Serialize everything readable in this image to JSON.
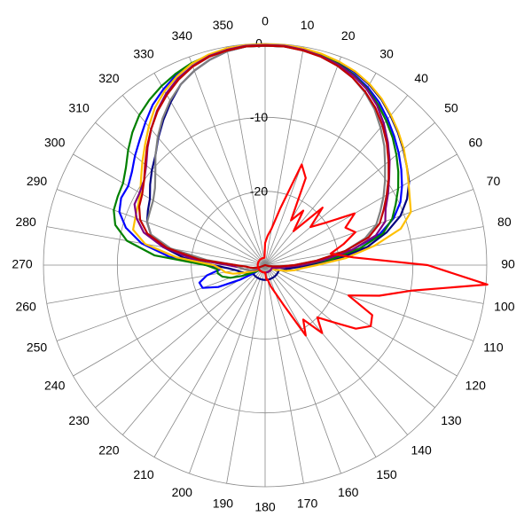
{
  "chart_data": {
    "type": "polar",
    "theta": [
      0,
      5,
      10,
      15,
      20,
      25,
      30,
      35,
      40,
      45,
      50,
      55,
      60,
      65,
      70,
      75,
      80,
      85,
      90,
      95,
      100,
      105,
      110,
      115,
      120,
      125,
      130,
      135,
      140,
      145,
      150,
      155,
      160,
      165,
      170,
      175,
      180,
      185,
      190,
      195,
      200,
      205,
      210,
      215,
      220,
      225,
      230,
      235,
      240,
      245,
      250,
      255,
      260,
      265,
      270,
      275,
      280,
      285,
      290,
      295,
      300,
      305,
      310,
      315,
      320,
      325,
      330,
      335,
      340,
      345,
      350,
      355
    ],
    "rlim": [
      -30,
      0
    ],
    "rticks": [
      -20,
      -10,
      0
    ],
    "thetaticks": [
      0,
      10,
      20,
      30,
      40,
      50,
      60,
      70,
      80,
      90,
      100,
      110,
      120,
      130,
      140,
      150,
      160,
      170,
      180,
      190,
      200,
      210,
      220,
      230,
      240,
      250,
      260,
      270,
      280,
      290,
      300,
      310,
      320,
      330,
      340,
      350
    ],
    "grid": true,
    "series": [
      {
        "color": "#000080",
        "values": [
          -0.2,
          -0.2,
          -0.3,
          -0.5,
          -0.8,
          -1.2,
          -1.8,
          -2.6,
          -3.6,
          -4.6,
          -5.6,
          -6.6,
          -7.5,
          -8.8,
          -10.5,
          -13,
          -16,
          -20,
          -24,
          -26,
          -27,
          -27.5,
          -28,
          -28,
          -28,
          -28,
          -28,
          -28,
          -28,
          -28,
          -28,
          -28,
          -28,
          -28,
          -28,
          -28,
          -28,
          -28,
          -28,
          -28,
          -28,
          -28,
          -28,
          -28,
          -28,
          -28,
          -28,
          -28,
          -28,
          -27.5,
          -27,
          -26.5,
          -26,
          -25,
          -23,
          -19,
          -16,
          -14,
          -13,
          -12.5,
          -12,
          -11,
          -10,
          -9,
          -7.5,
          -6,
          -4.5,
          -3,
          -2,
          -1.2,
          -0.6,
          -0.3
        ]
      },
      {
        "color": "#0000ff",
        "values": [
          -0.3,
          -0.3,
          -0.4,
          -0.6,
          -1,
          -1.5,
          -2.2,
          -3.1,
          -4.2,
          -5.3,
          -6.4,
          -7.5,
          -8.6,
          -9.8,
          -11.5,
          -14,
          -18,
          -22,
          -25,
          -27,
          -28,
          -28.5,
          -29,
          -29,
          -29,
          -29,
          -29,
          -29,
          -29,
          -29,
          -29,
          -29,
          -29,
          -29,
          -29,
          -29,
          -29,
          -29,
          -29,
          -29,
          -29,
          -29,
          -29,
          -29,
          -29,
          -29,
          -29,
          -28,
          -26,
          -23,
          -21,
          -20.8,
          -22,
          -24,
          -22,
          -17,
          -13,
          -10.5,
          -9,
          -8.5,
          -8.6,
          -8,
          -7,
          -6,
          -4.8,
          -3.5,
          -2.5,
          -1.6,
          -1,
          -0.6,
          -0.4,
          -0.3
        ]
      },
      {
        "color": "#008000",
        "values": [
          -0.3,
          -0.3,
          -0.4,
          -0.6,
          -1,
          -1.6,
          -2.4,
          -3.4,
          -4.5,
          -5.6,
          -6.8,
          -8,
          -9.2,
          -10.5,
          -11.7,
          -13.5,
          -17,
          -21,
          -25,
          -27,
          -28,
          -28.5,
          -29,
          -29,
          -29,
          -29,
          -29,
          -29,
          -29,
          -29,
          -29,
          -29,
          -29,
          -29,
          -29,
          -29,
          -29,
          -29,
          -29,
          -29,
          -29,
          -29,
          -29,
          -29,
          -29,
          -29,
          -29,
          -28.5,
          -28,
          -26.5,
          -25,
          -24,
          -23.5,
          -23.5,
          -22,
          -15,
          -11,
          -9,
          -8.2,
          -8,
          -7.8,
          -7,
          -5.8,
          -4.6,
          -3.5,
          -2.7,
          -2,
          -1.4,
          -0.9,
          -0.6,
          -0.4,
          -0.3
        ]
      },
      {
        "color": "#ffc000",
        "values": [
          -0.1,
          -0.1,
          -0.2,
          -0.4,
          -0.7,
          -1.1,
          -1.7,
          -2.5,
          -3.5,
          -4.5,
          -5.5,
          -6.6,
          -7.6,
          -8.4,
          -9,
          -11,
          -15,
          -19,
          -23,
          -25,
          -26,
          -27,
          -28,
          -28.5,
          -29,
          -29,
          -29,
          -29,
          -29,
          -29,
          -29,
          -29,
          -29,
          -29,
          -29,
          -29,
          -29,
          -29,
          -29,
          -29,
          -29,
          -29,
          -29,
          -29,
          -29,
          -29,
          -29,
          -29,
          -28.5,
          -28,
          -27,
          -25.5,
          -24.5,
          -24,
          -23,
          -18,
          -13.5,
          -11.5,
          -11.3,
          -11,
          -10.5,
          -9.5,
          -8.3,
          -7,
          -5.5,
          -4,
          -2.8,
          -1.8,
          -1,
          -0.5,
          -0.2,
          -0.1
        ]
      },
      {
        "color": "#800080",
        "values": [
          -0.2,
          -0.2,
          -0.4,
          -0.7,
          -1.1,
          -1.7,
          -2.5,
          -3.6,
          -5,
          -6.5,
          -8,
          -9.5,
          -10.8,
          -12,
          -12.7,
          -14.5,
          -18,
          -22,
          -25,
          -27,
          -28,
          -28.5,
          -29,
          -29,
          -29,
          -29,
          -29,
          -29,
          -29,
          -29,
          -29,
          -29,
          -29,
          -29,
          -29,
          -29,
          -29,
          -29,
          -29,
          -29,
          -29,
          -29,
          -29,
          -29,
          -29,
          -29,
          -29,
          -29,
          -29,
          -28.5,
          -28,
          -27.5,
          -27,
          -26.5,
          -25,
          -20,
          -16,
          -13,
          -11.5,
          -10.5,
          -10.4,
          -10,
          -9,
          -7.5,
          -6,
          -4.5,
          -3.2,
          -2.1,
          -1.3,
          -0.7,
          -0.4,
          -0.2
        ]
      },
      {
        "color": "#808080",
        "values": [
          -0.3,
          -0.3,
          -0.5,
          -0.8,
          -1.3,
          -2,
          -3,
          -4.2,
          -5.7,
          -7.2,
          -8.8,
          -10.2,
          -11.5,
          -12.8,
          -14,
          -16,
          -19,
          -23,
          -26,
          -28,
          -29,
          -29.5,
          -30,
          -30,
          -30,
          -30,
          -30,
          -30,
          -30,
          -30,
          -30,
          -30,
          -30,
          -30,
          -30,
          -30,
          -30,
          -30,
          -30,
          -30,
          -30,
          -30,
          -30,
          -30,
          -30,
          -30,
          -30,
          -30,
          -29.5,
          -29,
          -28,
          -27.5,
          -27,
          -26.5,
          -26,
          -22,
          -17,
          -14,
          -13,
          -12.8,
          -12.5,
          -11.8,
          -10.6,
          -9,
          -7.4,
          -5.8,
          -4.3,
          -3,
          -2,
          -1.2,
          -0.6,
          -0.3
        ]
      },
      {
        "color": "#c00000",
        "values": [
          -0.3,
          -0.3,
          -0.5,
          -0.8,
          -1.3,
          -2,
          -2.9,
          -4,
          -5.3,
          -6.7,
          -8.2,
          -9.6,
          -11,
          -12.3,
          -13.5,
          -15.5,
          -19,
          -23,
          -26,
          -28,
          -29,
          -29.5,
          -30,
          -30,
          -30,
          -30,
          -30,
          -30,
          -30,
          -30,
          -30,
          -30,
          -30,
          -30,
          -30,
          -30,
          -30,
          -30,
          -30,
          -30,
          -30,
          -30,
          -30,
          -30,
          -30,
          -30,
          -30,
          -30,
          -30,
          -30,
          -29,
          -28.5,
          -28,
          -27.5,
          -26,
          -21,
          -16.5,
          -13.5,
          -12,
          -11.2,
          -10.8,
          -10,
          -8.8,
          -7.4,
          -6,
          -4.6,
          -3.4,
          -2.3,
          -1.4,
          -0.8,
          -0.5,
          -0.3
        ]
      },
      {
        "color": "#ff0000",
        "values": [
          -27,
          -26,
          -25,
          -22,
          -15.5,
          -17,
          -23,
          -21,
          -24,
          -19,
          -22,
          -20,
          -16,
          -18,
          -17,
          -19,
          -21,
          -18,
          -8,
          0.2,
          -10,
          -14,
          -18,
          -14,
          -13.5,
          -15,
          -18,
          -20,
          -18,
          -21,
          -19,
          -24,
          -26,
          -27,
          -28,
          -28,
          -29,
          -29,
          -29,
          -29,
          -29,
          -29,
          -29,
          -29,
          -29,
          -29,
          -29,
          -29,
          -29,
          -29,
          -29,
          -29,
          -29,
          -29,
          -29,
          -29,
          -29,
          -29,
          -29,
          -29,
          -29,
          -29,
          -29,
          -29,
          -29,
          -29,
          -29,
          -29,
          -29,
          -29,
          -29,
          -29
        ]
      }
    ]
  }
}
